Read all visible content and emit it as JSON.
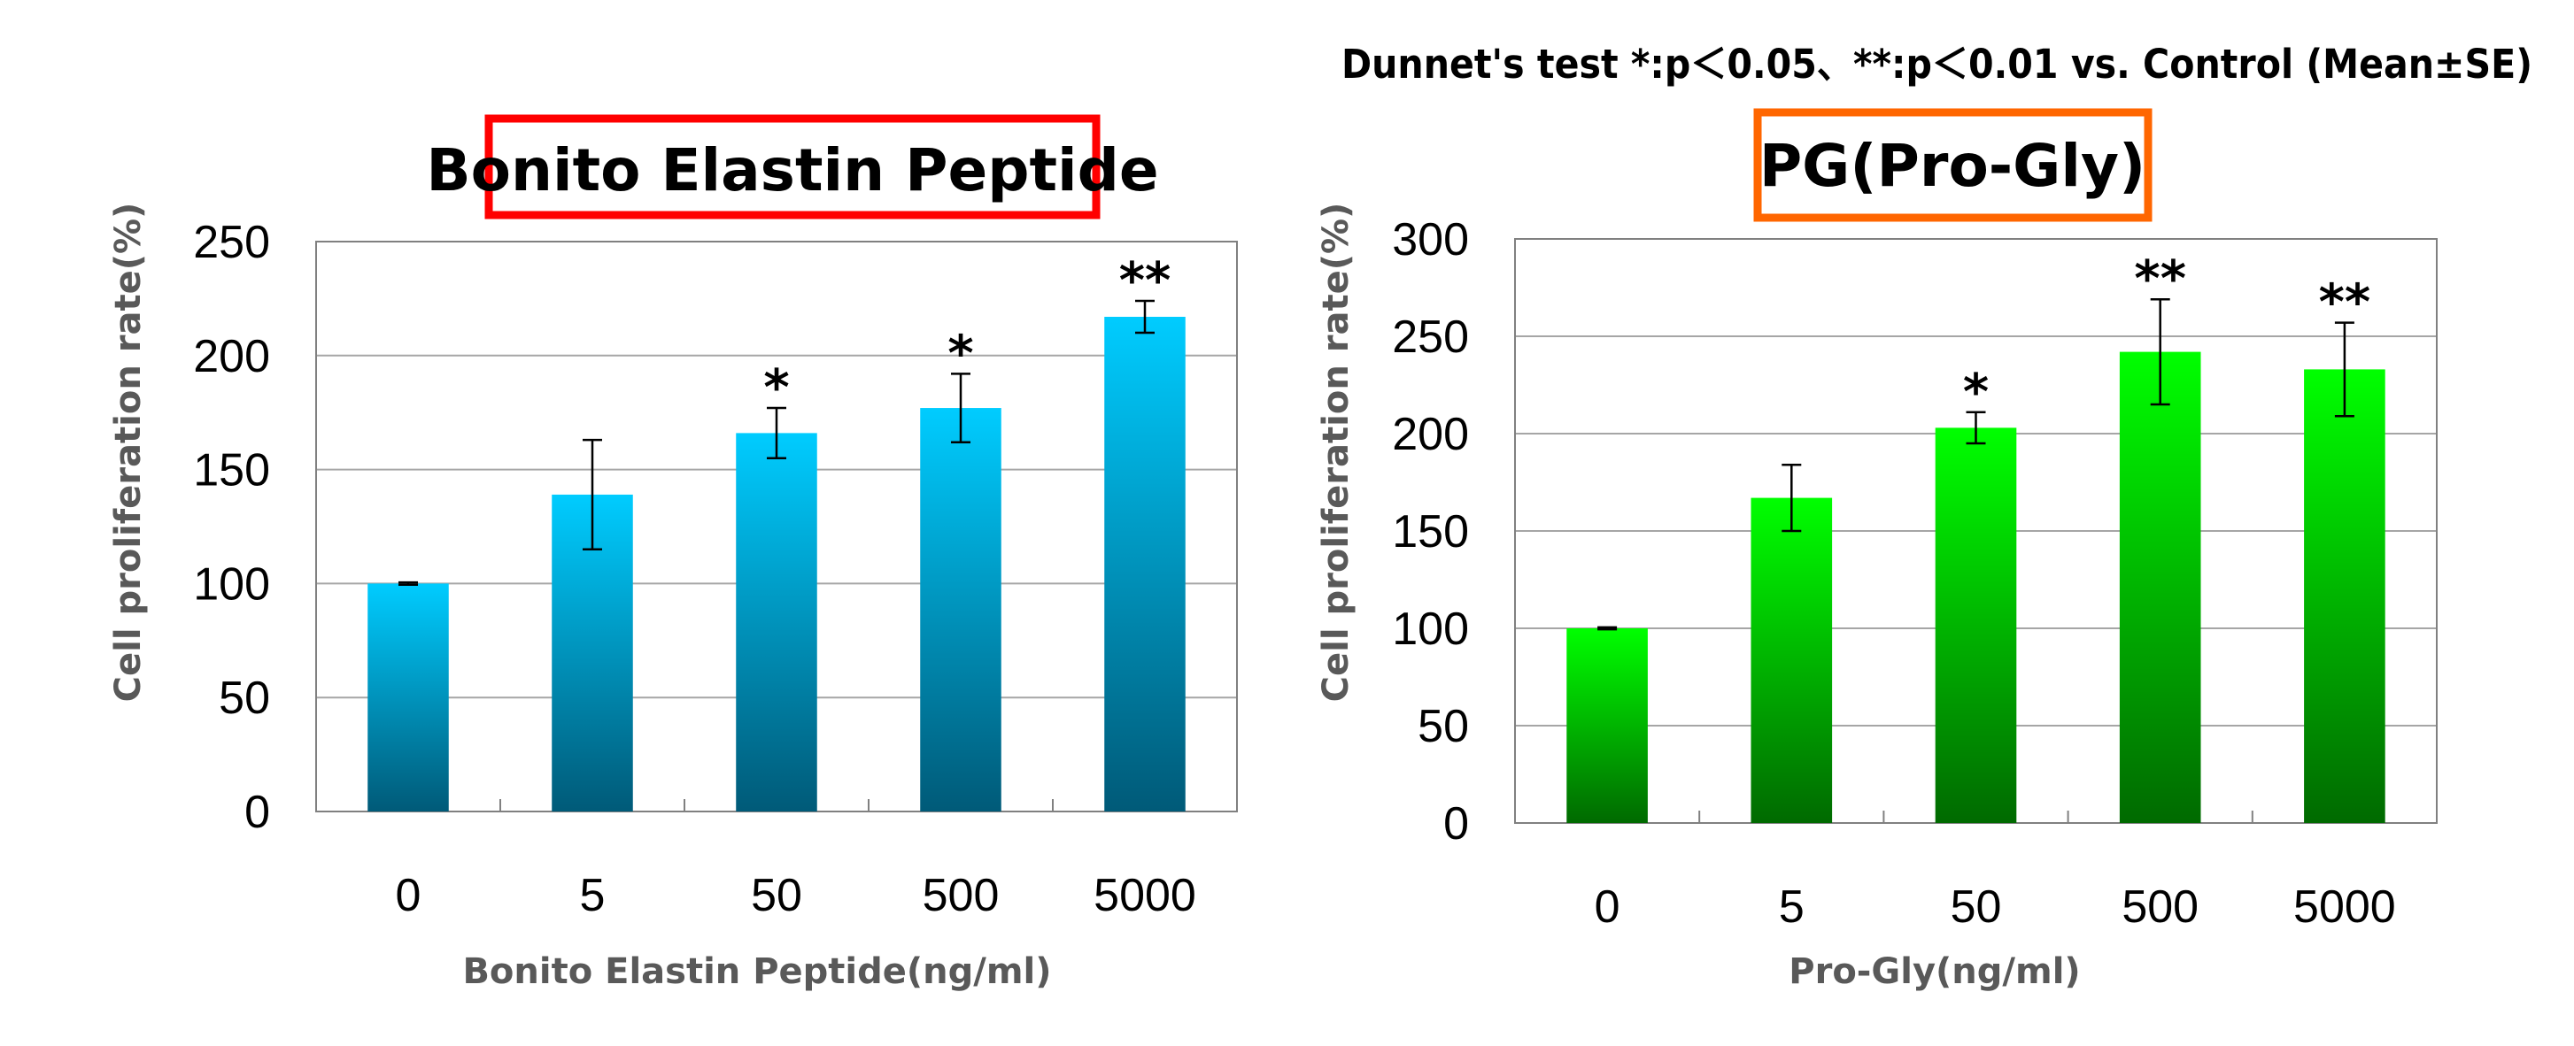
{
  "note": "Dunnet's test  *:p＜0.05、**:p＜0.01 vs. Control (Mean±SE)",
  "chart_data": [
    {
      "type": "bar",
      "title": "Bonito Elastin Peptide",
      "title_box_color": "#ff0000",
      "xlabel": "Bonito Elastin Peptide(ng/ml)",
      "ylabel": "Cell proliferation rate(%)",
      "categories": [
        "0",
        "5",
        "50",
        "500",
        "5000"
      ],
      "values": [
        100,
        139,
        166,
        177,
        217
      ],
      "errors": [
        0.5,
        24,
        11,
        15,
        7
      ],
      "significance": [
        "",
        "",
        "*",
        "*",
        "**"
      ],
      "ylim": [
        0,
        250
      ],
      "yticks": [
        0,
        50,
        100,
        150,
        200,
        250
      ],
      "grid": true,
      "bar_color_top": "#00ccff",
      "bar_color_bottom": "#005a78"
    },
    {
      "type": "bar",
      "title": "PG(Pro-Gly)",
      "title_box_color": "#ff6600",
      "xlabel": "Pro-Gly(ng/ml)",
      "ylabel": "Cell proliferation rate(%)",
      "categories": [
        "0",
        "5",
        "50",
        "500",
        "5000"
      ],
      "values": [
        100,
        167,
        203,
        242,
        233
      ],
      "errors": [
        0.5,
        17,
        8,
        27,
        24
      ],
      "significance": [
        "",
        "",
        "*",
        "**",
        "**"
      ],
      "ylim": [
        0,
        300
      ],
      "yticks": [
        0,
        50,
        100,
        150,
        200,
        250,
        300
      ],
      "grid": true,
      "bar_color_top": "#00ff00",
      "bar_color_bottom": "#006a00"
    }
  ]
}
